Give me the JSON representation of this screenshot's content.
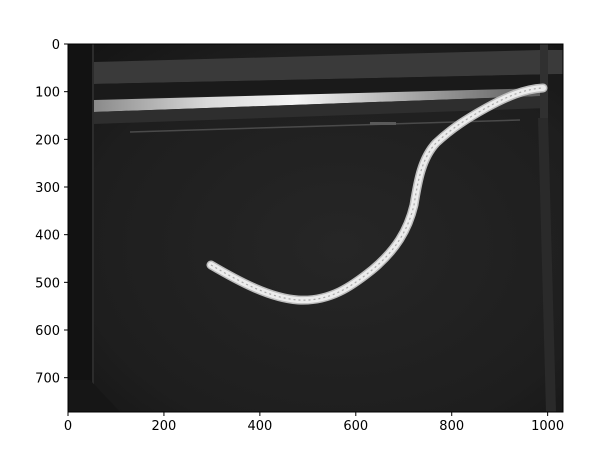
{
  "figure": {
    "background": "#ffffff",
    "image_description_name": "rope-photo",
    "image_colors": {
      "dark_bg": "#1c1c1c",
      "rod_highlight": "#e8e8e8",
      "rope": "#e6e6e6"
    },
    "x_axis": {
      "range": [
        0,
        1032
      ],
      "ticks": [
        0,
        200,
        400,
        600,
        800,
        1000
      ],
      "tick_labels": [
        "0",
        "200",
        "400",
        "600",
        "800",
        "1000"
      ]
    },
    "y_axis": {
      "range": [
        0,
        772
      ],
      "ticks": [
        0,
        100,
        200,
        300,
        400,
        500,
        600,
        700
      ],
      "tick_labels": [
        "0",
        "100",
        "200",
        "300",
        "400",
        "500",
        "600",
        "700"
      ],
      "inverted": true
    }
  }
}
